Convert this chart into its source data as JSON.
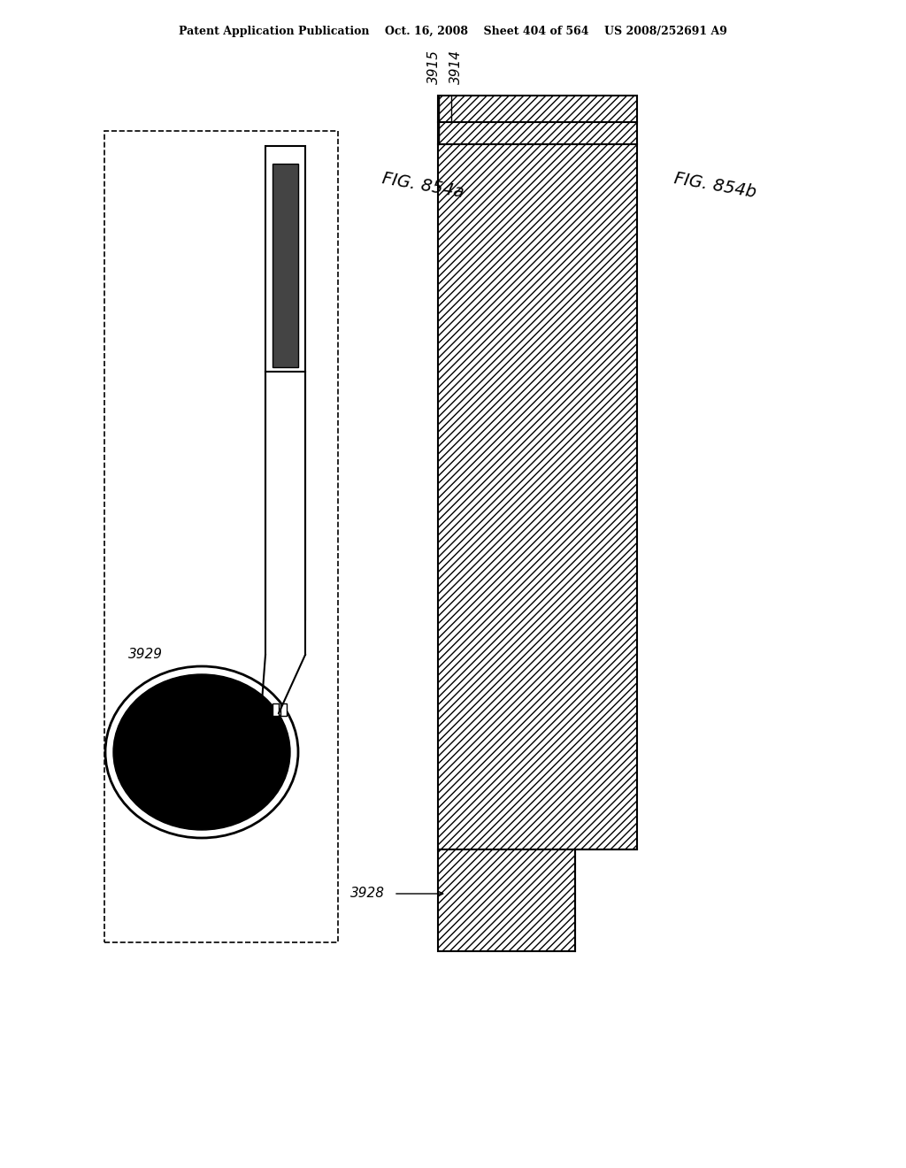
{
  "header_left": "Patent Application Publication",
  "header_mid": "Oct. 16, 2008",
  "header_sheet": "Sheet 404 of 564",
  "header_right": "US 2008/252691 A9",
  "fig_a_label": "FIG. 854a",
  "fig_b_label": "FIG. 854b",
  "label_3929": "3929",
  "label_3928": "3928",
  "label_3914": "3914",
  "label_3915": "3915",
  "bg_color": "#ffffff",
  "line_color": "#000000",
  "hatch_color": "#000000",
  "fill_black": "#000000",
  "fill_white": "#ffffff"
}
